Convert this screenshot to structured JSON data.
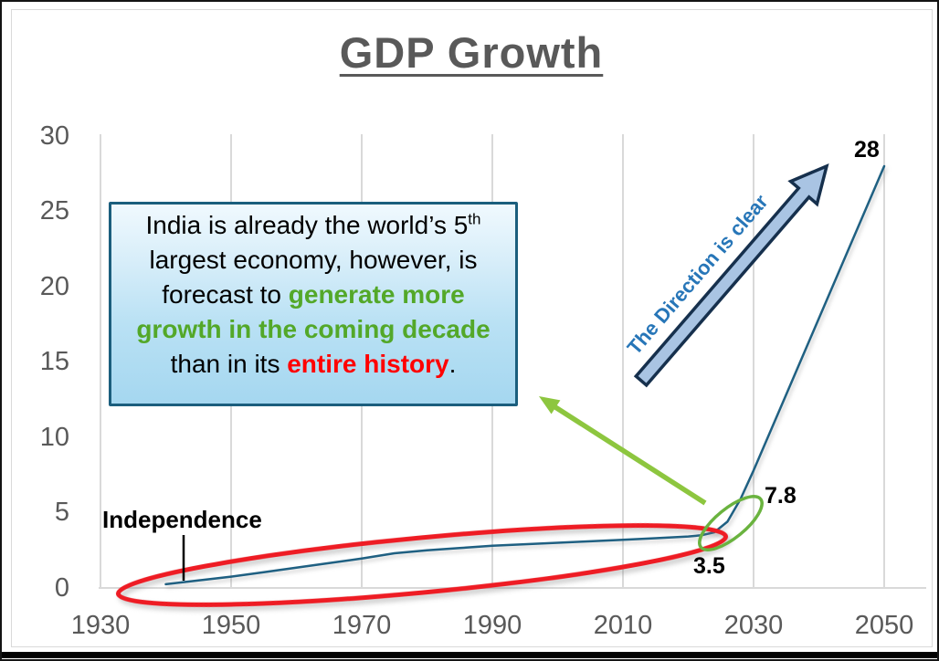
{
  "slide": {
    "title": "GDP Growth"
  },
  "chart_data": {
    "type": "line",
    "title": "GDP Growth",
    "xlabel": "",
    "ylabel": "",
    "xlim": [
      1930,
      2050
    ],
    "ylim": [
      0,
      30
    ],
    "x_tick_labels": [
      "1930",
      "1950",
      "1970",
      "1990",
      "2010",
      "2030",
      "2050"
    ],
    "y_tick_labels": [
      "30",
      "25",
      "20",
      "15",
      "10",
      "5",
      "0"
    ],
    "grid": "vertical gridlines only, light gray",
    "legend": "none",
    "series": [
      {
        "name": "GDP",
        "color": "#1f6082",
        "points": [
          [
            1940,
            0.25
          ],
          [
            1945,
            0.5
          ],
          [
            1950,
            0.75
          ],
          [
            1955,
            1.05
          ],
          [
            1960,
            1.35
          ],
          [
            1965,
            1.65
          ],
          [
            1970,
            1.95
          ],
          [
            1975,
            2.3
          ],
          [
            1980,
            2.5
          ],
          [
            1985,
            2.65
          ],
          [
            1990,
            2.8
          ],
          [
            1995,
            2.9
          ],
          [
            2000,
            3.0
          ],
          [
            2005,
            3.1
          ],
          [
            2010,
            3.2
          ],
          [
            2015,
            3.3
          ],
          [
            2020,
            3.42
          ],
          [
            2022,
            3.5
          ],
          [
            2024,
            3.7
          ],
          [
            2026,
            4.4
          ],
          [
            2028,
            5.9
          ],
          [
            2030,
            7.8
          ],
          [
            2035,
            12.85
          ],
          [
            2040,
            17.9
          ],
          [
            2045,
            22.95
          ],
          [
            2050,
            28
          ]
        ]
      }
    ],
    "data_labels": [
      {
        "label": "3.5",
        "year": 2022,
        "value": 3.5
      },
      {
        "label": "7.8",
        "year": 2030,
        "value": 7.8
      },
      {
        "label": "28",
        "year": 2050,
        "value": 28
      }
    ]
  },
  "axis": {
    "y": [
      "30",
      "25",
      "20",
      "15",
      "10",
      "5",
      "0"
    ],
    "x": [
      "1930",
      "1950",
      "1970",
      "1990",
      "2010",
      "2030",
      "2050"
    ]
  },
  "labels": {
    "val_28": "28",
    "val_78": "7.8",
    "val_35": "3.5"
  },
  "annotations": {
    "independence_label": "Independence",
    "direction_label": "The Direction is clear",
    "callout": {
      "line1_a": "India is already the world’s 5",
      "line1_sup": "th",
      "line2": "largest economy, however, is",
      "line3_a": "forecast to ",
      "line3_b": "generate more",
      "line4": "growth in the coming decade",
      "line5_a": "than in its ",
      "line5_b": "entire history",
      "line5_c": "."
    }
  },
  "colors": {
    "title_text": "#595959",
    "axis_text": "#595959",
    "gridline": "#d9d9d9",
    "series_line": "#1f6082",
    "red_ellipse": "#ee1c24",
    "green_ellipse": "#6ab33f",
    "green_arrow": "#8dc63f",
    "block_arrow_fill": "#a9c4e3",
    "block_arrow_outline": "#16304d",
    "direction_text": "#2776b8",
    "callout_border": "#1b5e7d",
    "callout_green": "#53a829",
    "callout_red": "#ff0000"
  }
}
